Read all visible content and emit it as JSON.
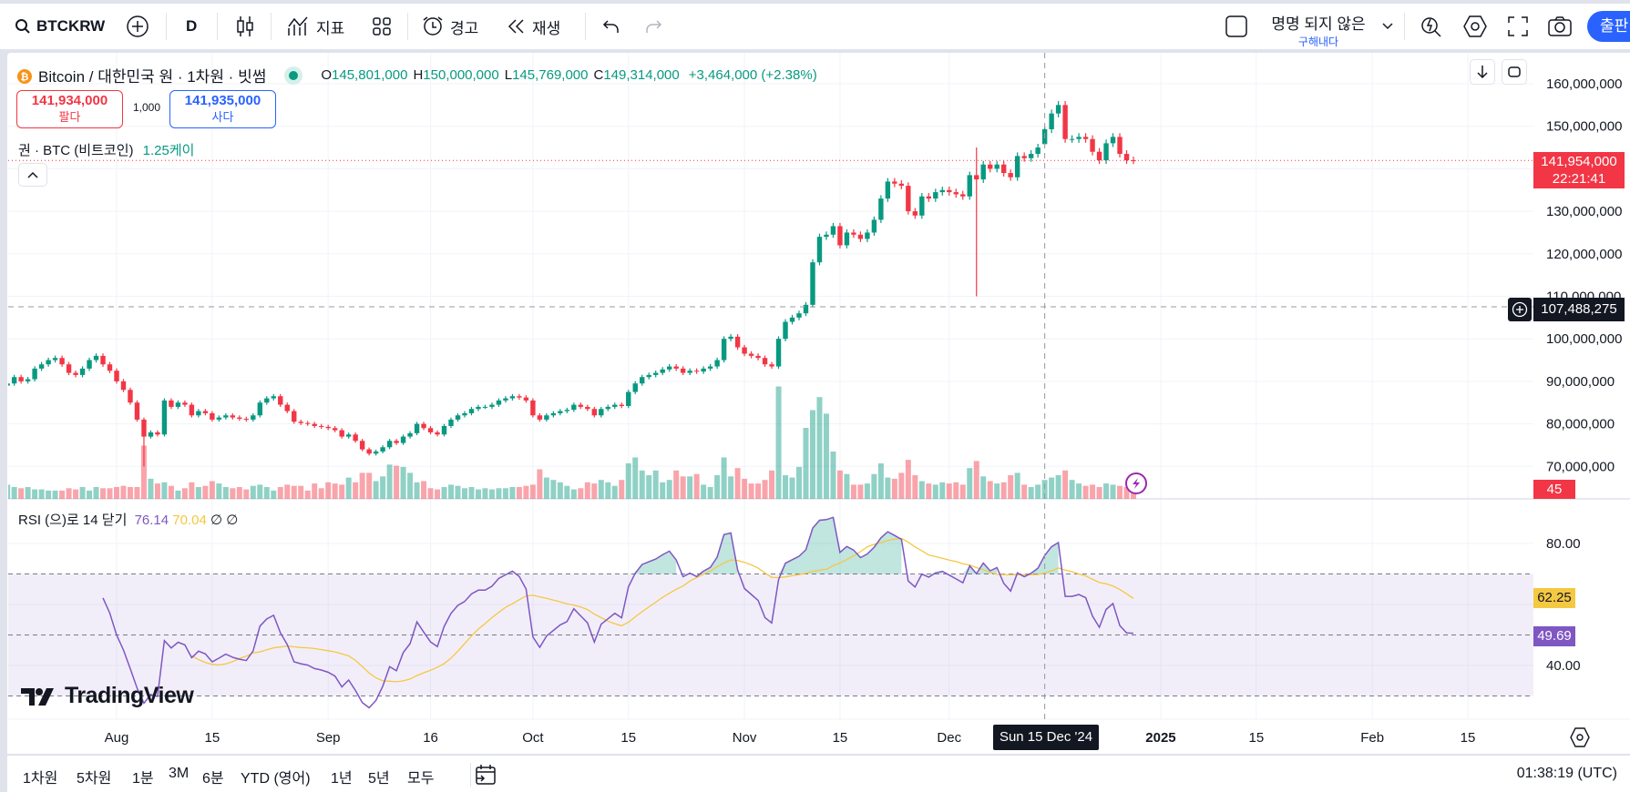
{
  "toolbar": {
    "symbol": "BTCKRW",
    "interval": "D",
    "indicators_label": "지표",
    "alert_label": "경고",
    "replay_label": "재생",
    "layout_name": "명명 되지 않은",
    "save_label": "구해내다",
    "publish_label": "출판"
  },
  "legend": {
    "title": "Bitcoin / 대한민국 원 · 1차원 · 빗썸",
    "open_label": "O",
    "open": "145,801,000",
    "high_label": "H",
    "high": "150,000,000",
    "low_label": "L",
    "low": "145,769,000",
    "close_label": "C",
    "close": "149,314,000",
    "change": "+3,464,000 (+2.38%)",
    "sell_price": "141,934,000",
    "sell_label": "팔다",
    "spread": "1,000",
    "buy_price": "141,935,000",
    "buy_label": "사다",
    "position": "권 · BTC (비트코인)",
    "position_qty": "1.25케이"
  },
  "price_axis": {
    "ticks": [
      "160,000,000",
      "150,000,000",
      "140,000,000",
      "130,000,000",
      "120,000,000",
      "110,000,000",
      "100,000,000",
      "90,000,000",
      "80,000,000",
      "70,000,000"
    ],
    "tick_values": [
      160,
      150,
      140,
      130,
      120,
      110,
      100,
      90,
      80,
      70
    ],
    "current_price": "141,954,000",
    "countdown": "22:21:41",
    "crosshair_price": "107,488,275",
    "volume_value": "45"
  },
  "rsi": {
    "label": "RSI (으)로 14 닫기",
    "value": "76.14",
    "ma_value": "70.04",
    "extra1": "∅",
    "extra2": "∅",
    "ticks": [
      "80.00",
      "40.00"
    ],
    "tick_values": [
      80,
      40
    ],
    "bands": [
      70,
      50,
      30
    ],
    "ma_tag": "62.25",
    "rsi_tag": "49.69"
  },
  "time_axis": {
    "ticks": [
      {
        "label": "Aug",
        "date": "2024-08-01"
      },
      {
        "label": "15",
        "date": "2024-08-15"
      },
      {
        "label": "Sep",
        "date": "2024-09-01"
      },
      {
        "label": "16",
        "date": "2024-09-16"
      },
      {
        "label": "Oct",
        "date": "2024-10-01"
      },
      {
        "label": "15",
        "date": "2024-10-15"
      },
      {
        "label": "Nov",
        "date": "2024-11-01"
      },
      {
        "label": "15",
        "date": "2024-11-15"
      },
      {
        "label": "Dec",
        "date": "2024-12-01"
      },
      {
        "label": "2025",
        "date": "2025-01-01"
      },
      {
        "label": "15",
        "date": "2025-01-15"
      },
      {
        "label": "Feb",
        "date": "2025-02-01"
      },
      {
        "label": "15",
        "date": "2025-02-15"
      }
    ],
    "crosshair_label": "Sun 15 Dec '24",
    "crosshair_date": "2024-12-15"
  },
  "bottom": {
    "ranges": [
      "1차원",
      "5차원",
      "1분",
      "3M",
      "6분",
      "YTD (영어)",
      "1년",
      "5년",
      "모두"
    ],
    "clock": "01:38:19 (UTC)"
  },
  "watermark": "TradingView",
  "colors": {
    "up": "#089981",
    "down": "#f23645",
    "rsi": "#7e57c2",
    "rsi_ma": "#f5c842",
    "accent": "#2962ff"
  },
  "chart_data": {
    "type": "candlestick",
    "start_date": "2024-07-16",
    "unit": "million KRW",
    "ylim": [
      65,
      163
    ],
    "close": [
      89.5,
      91,
      90,
      90.5,
      93,
      94,
      95,
      95.5,
      94,
      92,
      91.5,
      93,
      95,
      96,
      94,
      92.5,
      90,
      88,
      85,
      81,
      77,
      78,
      77.5,
      85.5,
      84,
      85,
      84.5,
      82,
      83,
      82.5,
      81,
      81.5,
      82,
      81.5,
      81.2,
      81,
      82,
      85,
      86,
      86.5,
      84.5,
      83,
      80.5,
      80.2,
      80,
      79.5,
      79.3,
      79,
      78.5,
      77,
      77.5,
      76,
      74,
      73,
      73.5,
      74.5,
      76,
      75.5,
      77,
      77.8,
      80,
      79,
      78,
      77.5,
      79.5,
      81,
      82,
      82.5,
      83.5,
      84,
      84,
      84.5,
      85.5,
      86,
      86.5,
      86.2,
      85.5,
      82,
      81,
      82,
      82.5,
      83,
      83.3,
      84.5,
      84,
      83.5,
      82,
      83.5,
      84,
      84.5,
      84.2,
      87.5,
      89.5,
      91,
      91.5,
      92,
      92.8,
      93.5,
      93,
      92,
      92.5,
      92.3,
      93,
      93.5,
      95,
      100,
      100.5,
      98,
      96.5,
      96,
      95.5,
      94,
      93.5,
      100,
      104,
      105,
      106,
      108,
      118,
      124,
      124.5,
      126.5,
      122,
      125,
      124.5,
      123.5,
      125,
      128,
      133,
      137,
      136.5,
      136,
      130,
      129,
      133.5,
      133,
      134.5,
      135,
      134.5,
      134,
      133.5,
      138.5,
      137.5,
      141,
      140,
      141,
      139,
      138,
      143,
      142.5,
      143.5,
      145,
      149.3,
      153,
      155,
      147,
      147,
      147.5,
      147,
      144,
      142,
      146,
      147.5,
      143.5,
      142,
      141.95
    ],
    "notable_wicks": [
      {
        "date": "2024-08-05",
        "low": 70
      },
      {
        "date": "2024-12-05",
        "low": 110,
        "high": 145
      },
      {
        "date": "2024-12-15",
        "open": 145.801,
        "high": 150,
        "low": 145.769,
        "close": 149.314
      }
    ],
    "volume": [
      12,
      10,
      9,
      10,
      8,
      8,
      7,
      7,
      7,
      9,
      8,
      10,
      7,
      10,
      9,
      9,
      10,
      11,
      10,
      10,
      45,
      17,
      13,
      14,
      11,
      7,
      9,
      14,
      10,
      11,
      15,
      13,
      10,
      9,
      10,
      8,
      11,
      12,
      10,
      7,
      10,
      12,
      11,
      11,
      7,
      13,
      9,
      14,
      13,
      12,
      18,
      14,
      22,
      22,
      15,
      19,
      29,
      28,
      27,
      22,
      14,
      15,
      9,
      8,
      10,
      12,
      11,
      9,
      10,
      8,
      9,
      8,
      9,
      9,
      10,
      10,
      11,
      12,
      25,
      18,
      16,
      14,
      11,
      8,
      9,
      14,
      13,
      16,
      14,
      11,
      16,
      30,
      35,
      24,
      20,
      24,
      14,
      16,
      24,
      19,
      19,
      21,
      12,
      10,
      20,
      35,
      19,
      26,
      17,
      13,
      13,
      16,
      24,
      95,
      20,
      18,
      27,
      60,
      75,
      86,
      72,
      40,
      24,
      21,
      12,
      12,
      13,
      21,
      30,
      18,
      17,
      22,
      33,
      20,
      15,
      13,
      12,
      14,
      13,
      14,
      12,
      26,
      32,
      19,
      15,
      13,
      14,
      20,
      22,
      12,
      10,
      12,
      16,
      18,
      20,
      24,
      16,
      13,
      11,
      12,
      10,
      13,
      12,
      11,
      10,
      9
    ],
    "rsi_period": 14
  }
}
